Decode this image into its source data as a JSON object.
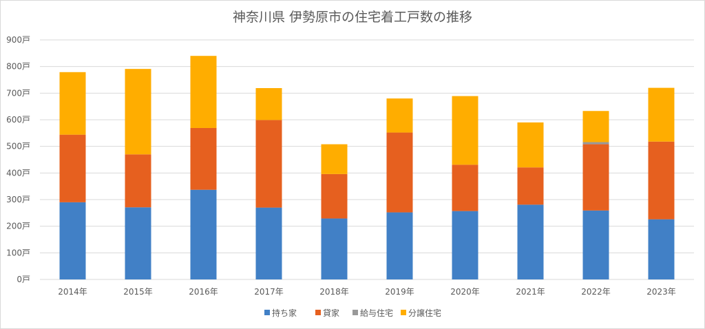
{
  "chart_data": {
    "type": "bar",
    "stacked": true,
    "title": "神奈川県 伊勢原市の住宅着工戸数の推移",
    "categories": [
      "2014年",
      "2015年",
      "2016年",
      "2017年",
      "2018年",
      "2019年",
      "2020年",
      "2021年",
      "2022年",
      "2023年"
    ],
    "series": [
      {
        "name": "持ち家",
        "color": "#4180c6",
        "values": [
          290,
          271,
          337,
          270,
          229,
          252,
          257,
          281,
          259,
          226
        ]
      },
      {
        "name": "貸家",
        "color": "#e6601f",
        "values": [
          254,
          199,
          232,
          329,
          167,
          300,
          174,
          140,
          249,
          292
        ]
      },
      {
        "name": "給与住宅",
        "color": "#999999",
        "values": [
          0,
          0,
          0,
          0,
          0,
          0,
          0,
          0,
          8,
          0
        ]
      },
      {
        "name": "分譲住宅",
        "color": "#ffad00",
        "values": [
          235,
          321,
          271,
          120,
          112,
          128,
          258,
          169,
          117,
          202
        ]
      }
    ],
    "ylim": [
      0,
      900
    ],
    "yticks": [
      "0戸",
      "100戸",
      "200戸",
      "300戸",
      "400戸",
      "500戸",
      "600戸",
      "700戸",
      "800戸",
      "900戸"
    ],
    "grid": true,
    "legend_position": "bottom"
  }
}
